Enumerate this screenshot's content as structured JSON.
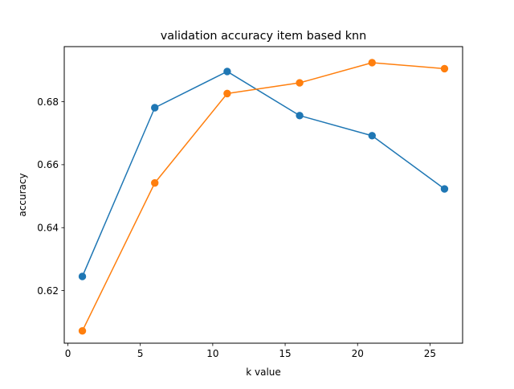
{
  "chart_data": {
    "type": "line",
    "title": "validation accuracy item based knn",
    "xlabel": "k value",
    "ylabel": "accuracy",
    "xlim": [
      -0.25,
      27.25
    ],
    "ylim": [
      0.6033,
      0.6975
    ],
    "x": [
      1,
      6,
      11,
      16,
      21,
      26
    ],
    "xticks": [
      0,
      5,
      10,
      15,
      20,
      25
    ],
    "xtick_labels": [
      "0",
      "5",
      "10",
      "15",
      "20",
      "25"
    ],
    "yticks": [
      0.62,
      0.64,
      0.66,
      0.68
    ],
    "ytick_labels": [
      "0.62",
      "0.64",
      "0.66",
      "0.68"
    ],
    "grid": false,
    "series": [
      {
        "values": [
          0.6245,
          0.6781,
          0.6896,
          0.6756,
          0.6692,
          0.6523
        ],
        "color": "#1f77b4",
        "marker": "circle"
      },
      {
        "values": [
          0.6072,
          0.6542,
          0.6826,
          0.686,
          0.6924,
          0.6905
        ],
        "color": "#ff7f0e",
        "marker": "circle"
      }
    ]
  }
}
